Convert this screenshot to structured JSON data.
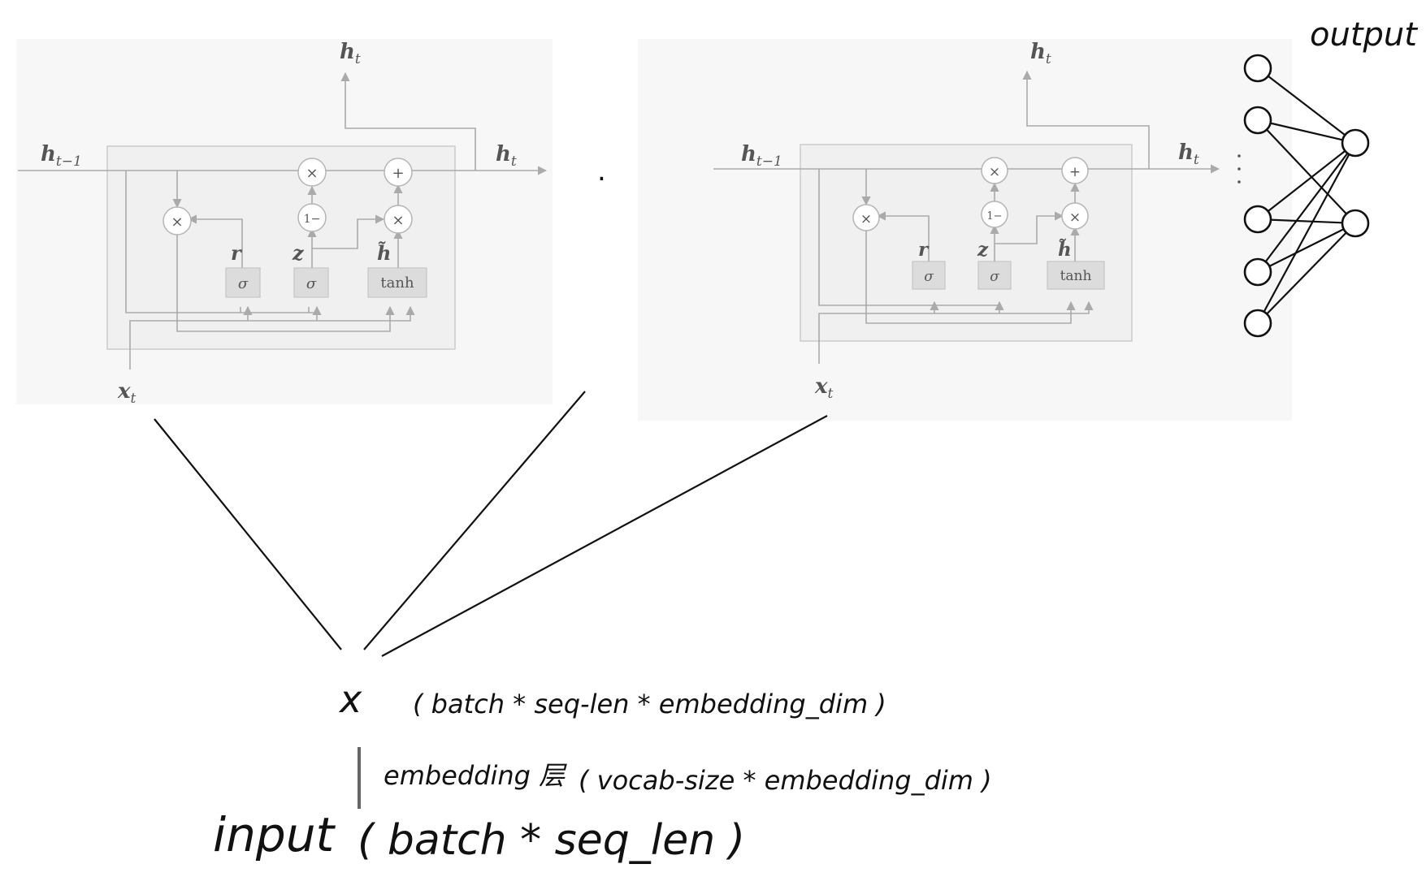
{
  "gru_cell_left": {
    "h_prev": "h",
    "h_prev_sub": "t−1",
    "h_out_top": "h",
    "h_out_top_sub": "t",
    "h_out_right": "h",
    "h_out_right_sub": "t",
    "x_in": "x",
    "x_in_sub": "t",
    "reset_gate": "r",
    "update_gate": "z",
    "candidate": "h̃",
    "sigma_1": "σ",
    "sigma_2": "σ",
    "tanh": "tanh",
    "op_mul": "×",
    "op_add": "+",
    "op_one_minus": "1−"
  },
  "gru_cell_right": {
    "h_prev": "h",
    "h_prev_sub": "t−1",
    "h_out_top": "h",
    "h_out_top_sub": "t",
    "h_out_right": "h",
    "h_out_right_sub": "t",
    "x_in": "x",
    "x_in_sub": "t",
    "reset_gate": "r",
    "update_gate": "z",
    "candidate": "h̃",
    "sigma_1": "σ",
    "sigma_2": "σ",
    "tanh": "tanh",
    "op_mul": "×",
    "op_add": "+",
    "op_one_minus": "1−"
  },
  "ellipsis": ". . .",
  "output_label": "output",
  "network": {
    "input_neurons": 5,
    "output_neurons": 2
  },
  "annotations": {
    "x_symbol": "x",
    "x_shape": "( batch * seq-len * embedding_dim )",
    "embedding_label": "embedding 层",
    "embedding_shape": "( vocab-size * embedding_dim )",
    "input_label": "input",
    "input_shape": "( batch * seq_len )"
  }
}
